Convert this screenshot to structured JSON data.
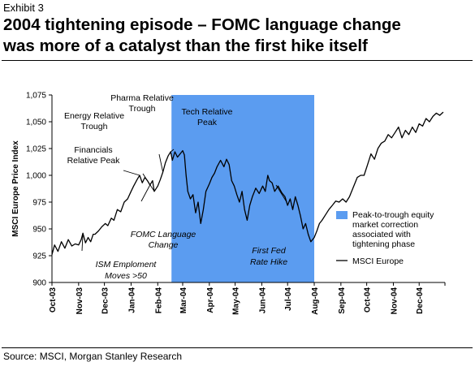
{
  "header": {
    "exhibit": "Exhibit 3",
    "title_line1": "2004 tightening episode – FOMC language change",
    "title_line2": "was more of a catalyst than the first hike itself"
  },
  "footer": {
    "source": "Source: MSCI, Morgan Stanley Research"
  },
  "colors": {
    "shade": "#5b9cf0",
    "line": "#000000"
  },
  "chart_data": {
    "type": "line",
    "ylabel": "MSCI Europe Price Index",
    "ylim": [
      900,
      1075
    ],
    "yticks": [
      900,
      925,
      950,
      975,
      1000,
      1025,
      1050,
      1075
    ],
    "ytick_labels": [
      "900",
      "925",
      "950",
      "975",
      "1,000",
      "1,025",
      "1,050",
      "1,075"
    ],
    "xlim": [
      "2003-10-01",
      "2004-12-31"
    ],
    "xtick_labels": [
      "Oct-03",
      "Nov-03",
      "Dec-03",
      "Jan-04",
      "Feb-04",
      "Mar-04",
      "Apr-04",
      "May-04",
      "Jun-04",
      "Jul-04",
      "Aug-04",
      "Sep-04",
      "Oct-04",
      "Nov-04",
      "Dec-04"
    ],
    "shaded_region": {
      "label": "Peak-to-trough equity market correction associated with tightening phase",
      "start": "2004-02-17",
      "end": "2004-08-01"
    },
    "series": [
      {
        "name": "MSCI Europe",
        "points": [
          [
            "2003-10-01",
            926
          ],
          [
            "2003-10-04",
            935
          ],
          [
            "2003-10-08",
            929
          ],
          [
            "2003-10-12",
            938
          ],
          [
            "2003-10-16",
            932
          ],
          [
            "2003-10-20",
            940
          ],
          [
            "2003-10-24",
            934
          ],
          [
            "2003-10-28",
            936
          ],
          [
            "2003-11-01",
            935
          ],
          [
            "2003-11-04",
            940
          ],
          [
            "2003-11-06",
            946
          ],
          [
            "2003-11-09",
            937
          ],
          [
            "2003-11-12",
            942
          ],
          [
            "2003-11-15",
            938
          ],
          [
            "2003-11-18",
            945
          ],
          [
            "2003-11-20",
            945
          ],
          [
            "2003-11-24",
            948
          ],
          [
            "2003-11-28",
            952
          ],
          [
            "2003-12-02",
            955
          ],
          [
            "2003-12-05",
            953
          ],
          [
            "2003-12-09",
            960
          ],
          [
            "2003-12-12",
            958
          ],
          [
            "2003-12-16",
            968
          ],
          [
            "2003-12-20",
            966
          ],
          [
            "2003-12-24",
            975
          ],
          [
            "2003-12-28",
            978
          ],
          [
            "2004-01-01",
            985
          ],
          [
            "2004-01-04",
            990
          ],
          [
            "2004-01-08",
            996
          ],
          [
            "2004-01-11",
            1000
          ],
          [
            "2004-01-14",
            993
          ],
          [
            "2004-01-17",
            998
          ],
          [
            "2004-01-20",
            995
          ],
          [
            "2004-01-23",
            991
          ],
          [
            "2004-01-26",
            995
          ],
          [
            "2004-01-28",
            985
          ],
          [
            "2004-02-01",
            990
          ],
          [
            "2004-02-04",
            996
          ],
          [
            "2004-02-07",
            1003
          ],
          [
            "2004-02-10",
            1012
          ],
          [
            "2004-02-13",
            1018
          ],
          [
            "2004-02-16",
            1022
          ],
          [
            "2004-02-18",
            1014
          ],
          [
            "2004-02-21",
            1022
          ],
          [
            "2004-02-24",
            1017
          ],
          [
            "2004-02-27",
            1020
          ],
          [
            "2004-03-01",
            1023
          ],
          [
            "2004-03-03",
            1019
          ],
          [
            "2004-03-05",
            1000
          ],
          [
            "2004-03-07",
            985
          ],
          [
            "2004-03-10",
            978
          ],
          [
            "2004-03-13",
            982
          ],
          [
            "2004-03-16",
            965
          ],
          [
            "2004-03-19",
            975
          ],
          [
            "2004-03-22",
            955
          ],
          [
            "2004-03-25",
            968
          ],
          [
            "2004-03-28",
            985
          ],
          [
            "2004-04-01",
            992
          ],
          [
            "2004-04-04",
            998
          ],
          [
            "2004-04-07",
            1002
          ],
          [
            "2004-04-10",
            1008
          ],
          [
            "2004-04-14",
            1014
          ],
          [
            "2004-04-18",
            1008
          ],
          [
            "2004-04-21",
            1015
          ],
          [
            "2004-04-24",
            1010
          ],
          [
            "2004-04-27",
            995
          ],
          [
            "2004-04-30",
            990
          ],
          [
            "2004-05-03",
            982
          ],
          [
            "2004-05-06",
            975
          ],
          [
            "2004-05-09",
            985
          ],
          [
            "2004-05-12",
            968
          ],
          [
            "2004-05-15",
            958
          ],
          [
            "2004-05-18",
            972
          ],
          [
            "2004-05-21",
            980
          ],
          [
            "2004-05-25",
            988
          ],
          [
            "2004-05-29",
            983
          ],
          [
            "2004-06-02",
            990
          ],
          [
            "2004-06-05",
            985
          ],
          [
            "2004-06-08",
            1000
          ],
          [
            "2004-06-10",
            995
          ],
          [
            "2004-06-13",
            993
          ],
          [
            "2004-06-16",
            985
          ],
          [
            "2004-06-20",
            990
          ],
          [
            "2004-06-24",
            984
          ],
          [
            "2004-06-28",
            980
          ],
          [
            "2004-07-01",
            972
          ],
          [
            "2004-07-04",
            978
          ],
          [
            "2004-07-07",
            968
          ],
          [
            "2004-07-10",
            980
          ],
          [
            "2004-07-13",
            972
          ],
          [
            "2004-07-16",
            962
          ],
          [
            "2004-07-19",
            950
          ],
          [
            "2004-07-22",
            955
          ],
          [
            "2004-07-25",
            945
          ],
          [
            "2004-07-28",
            938
          ],
          [
            "2004-08-01",
            942
          ],
          [
            "2004-08-04",
            948
          ],
          [
            "2004-08-07",
            955
          ],
          [
            "2004-08-10",
            958
          ],
          [
            "2004-08-14",
            963
          ],
          [
            "2004-08-18",
            968
          ],
          [
            "2004-08-22",
            972
          ],
          [
            "2004-08-26",
            976
          ],
          [
            "2004-08-30",
            975
          ],
          [
            "2004-09-03",
            978
          ],
          [
            "2004-09-07",
            975
          ],
          [
            "2004-09-11",
            980
          ],
          [
            "2004-09-15",
            988
          ],
          [
            "2004-09-20",
            998
          ],
          [
            "2004-09-24",
            1000
          ],
          [
            "2004-09-28",
            1000
          ],
          [
            "2004-10-02",
            1010
          ],
          [
            "2004-10-06",
            1020
          ],
          [
            "2004-10-10",
            1015
          ],
          [
            "2004-10-14",
            1025
          ],
          [
            "2004-10-18",
            1030
          ],
          [
            "2004-10-22",
            1032
          ],
          [
            "2004-10-26",
            1038
          ],
          [
            "2004-10-30",
            1035
          ],
          [
            "2004-11-03",
            1040
          ],
          [
            "2004-11-07",
            1045
          ],
          [
            "2004-11-11",
            1035
          ],
          [
            "2004-11-15",
            1042
          ],
          [
            "2004-11-19",
            1038
          ],
          [
            "2004-11-23",
            1045
          ],
          [
            "2004-11-27",
            1040
          ],
          [
            "2004-12-01",
            1048
          ],
          [
            "2004-12-05",
            1046
          ],
          [
            "2004-12-09",
            1053
          ],
          [
            "2004-12-13",
            1050
          ],
          [
            "2004-12-17",
            1055
          ],
          [
            "2004-12-21",
            1058
          ],
          [
            "2004-12-25",
            1056
          ],
          [
            "2004-12-29",
            1059
          ]
        ]
      }
    ],
    "annotations": [
      {
        "id": "energy-relative-trough",
        "lines": [
          "Energy Relative",
          "Trough"
        ],
        "italic": false,
        "point": [
          "2004-01-28",
          985
        ]
      },
      {
        "id": "pharma-relative-trough",
        "lines": [
          "Pharma Relative",
          "Trough"
        ],
        "italic": false,
        "point": [
          "2004-02-07",
          1003
        ]
      },
      {
        "id": "tech-relative-peak",
        "lines": [
          "Tech Relative",
          "Peak"
        ],
        "italic": false,
        "point": [
          "2004-02-16",
          1022
        ]
      },
      {
        "id": "financials-relative-peak",
        "lines": [
          "Financials",
          "Relative Peak"
        ],
        "italic": false,
        "point": [
          "2004-01-11",
          1000
        ]
      },
      {
        "id": "fomc-language-change",
        "lines": [
          "FOMC Language",
          "Change"
        ],
        "italic": true,
        "point": [
          "2004-01-23",
          991
        ]
      },
      {
        "id": "ism-employment",
        "lines": [
          "ISM Emploment",
          "Moves >50"
        ],
        "italic": true,
        "point": [
          "2003-11-06",
          946
        ]
      },
      {
        "id": "first-fed-rate-hike",
        "lines": [
          "First Fed",
          "Rate Hike"
        ],
        "italic": true,
        "point": [
          "2004-06-30",
          975
        ]
      }
    ],
    "legend": {
      "placement": "right",
      "items": [
        {
          "kind": "patch",
          "label": "Peak-to-trough equity market correction associated with tightening phase",
          "lines": [
            "Peak-to-trough equity",
            "market correction",
            "associated with",
            "tightening phase"
          ]
        },
        {
          "kind": "line",
          "label": "MSCI Europe"
        }
      ]
    },
    "grid": false
  }
}
